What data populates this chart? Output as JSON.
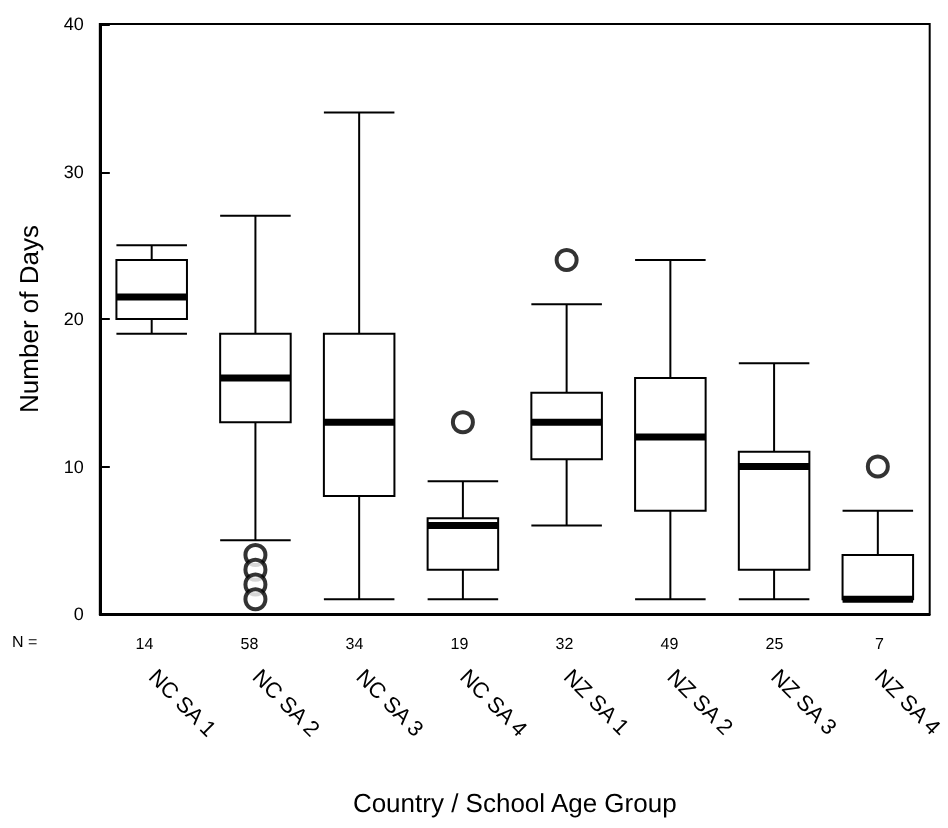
{
  "chart_data": {
    "type": "box",
    "xlabel": "Country / School Age Group",
    "ylabel": "Number of Days",
    "categories": [
      "NC SA 1",
      "NC SA 2",
      "NC SA 3",
      "NC SA 4",
      "NZ SA 1",
      "NZ SA 2",
      "NZ SA 3",
      "NZ SA 4"
    ],
    "boxes": [
      {
        "low": 19,
        "q1": 20,
        "median": 21.5,
        "q3": 24,
        "high": 25
      },
      {
        "low": 5,
        "q1": 13,
        "median": 16,
        "q3": 19,
        "high": 27,
        "outliers": [
          4,
          3,
          2,
          1
        ]
      },
      {
        "low": 1,
        "q1": 8,
        "median": 13,
        "q3": 19,
        "high": 34
      },
      {
        "low": 1,
        "q1": 3,
        "median": 6,
        "q3": 6.5,
        "high": 9,
        "outliers": [
          13
        ]
      },
      {
        "low": 6,
        "q1": 10.5,
        "median": 13,
        "q3": 15,
        "high": 21,
        "outliers": [
          24
        ]
      },
      {
        "low": 1,
        "q1": 7,
        "median": 12,
        "q3": 16,
        "high": 24
      },
      {
        "low": 1,
        "q1": 3,
        "median": 10,
        "q3": 11,
        "high": 17
      },
      {
        "low": 1,
        "q1": 1,
        "median": 1,
        "q3": 4,
        "high": 7,
        "outliers": [
          10
        ]
      }
    ],
    "ylim": [
      0,
      40
    ],
    "yticks": [
      0,
      10,
      20,
      30,
      40
    ],
    "grid": false,
    "legend": false,
    "annotations": [
      "N =",
      "14",
      "58",
      "34",
      "19",
      "32",
      "49",
      "25",
      "7"
    ]
  }
}
